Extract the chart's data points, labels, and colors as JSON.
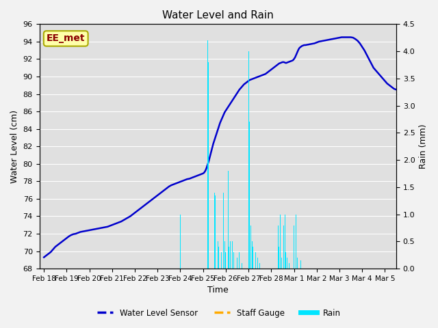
{
  "title": "Water Level and Rain",
  "xlabel": "Time",
  "ylabel_left": "Water Level (cm)",
  "ylabel_right": "Rain (mm)",
  "ylim_left": [
    68,
    96
  ],
  "ylim_right": [
    0.0,
    4.5
  ],
  "yticks_left": [
    68,
    70,
    72,
    74,
    76,
    78,
    80,
    82,
    84,
    86,
    88,
    90,
    92,
    94,
    96
  ],
  "yticks_right": [
    0.0,
    0.5,
    1.0,
    1.5,
    2.0,
    2.5,
    3.0,
    3.5,
    4.0,
    4.5
  ],
  "plot_bg_color": "#e0e0e0",
  "fig_bg_color": "#f2f2f2",
  "annotation_text": "EE_met",
  "annotation_color": "#8B0000",
  "annotation_bg": "#ffffaa",
  "annotation_edge": "#aaaa00",
  "water_level_color": "#0000cc",
  "staff_gauge_color": "#ffaa00",
  "rain_color": "#00e5ff",
  "legend_labels": [
    "Water Level Sensor",
    "Staff Gauge",
    "Rain"
  ],
  "water_level_data": [
    [
      0.0,
      69.3
    ],
    [
      0.1,
      69.5
    ],
    [
      0.2,
      69.7
    ],
    [
      0.3,
      69.9
    ],
    [
      0.4,
      70.2
    ],
    [
      0.5,
      70.5
    ],
    [
      0.6,
      70.7
    ],
    [
      0.7,
      70.9
    ],
    [
      0.8,
      71.1
    ],
    [
      0.9,
      71.3
    ],
    [
      1.0,
      71.5
    ],
    [
      1.1,
      71.7
    ],
    [
      1.2,
      71.85
    ],
    [
      1.3,
      71.95
    ],
    [
      1.4,
      72.0
    ],
    [
      1.5,
      72.1
    ],
    [
      1.6,
      72.2
    ],
    [
      1.7,
      72.25
    ],
    [
      1.8,
      72.3
    ],
    [
      1.9,
      72.35
    ],
    [
      2.0,
      72.4
    ],
    [
      2.1,
      72.45
    ],
    [
      2.2,
      72.5
    ],
    [
      2.3,
      72.55
    ],
    [
      2.4,
      72.6
    ],
    [
      2.5,
      72.65
    ],
    [
      2.6,
      72.7
    ],
    [
      2.7,
      72.75
    ],
    [
      2.8,
      72.8
    ],
    [
      2.9,
      72.9
    ],
    [
      3.0,
      73.0
    ],
    [
      3.1,
      73.1
    ],
    [
      3.2,
      73.2
    ],
    [
      3.3,
      73.3
    ],
    [
      3.4,
      73.4
    ],
    [
      3.5,
      73.55
    ],
    [
      3.6,
      73.7
    ],
    [
      3.7,
      73.85
    ],
    [
      3.8,
      74.0
    ],
    [
      3.9,
      74.2
    ],
    [
      4.0,
      74.4
    ],
    [
      4.1,
      74.6
    ],
    [
      4.2,
      74.8
    ],
    [
      4.3,
      75.0
    ],
    [
      4.4,
      75.2
    ],
    [
      4.5,
      75.4
    ],
    [
      4.6,
      75.6
    ],
    [
      4.7,
      75.8
    ],
    [
      4.8,
      76.0
    ],
    [
      4.9,
      76.2
    ],
    [
      5.0,
      76.4
    ],
    [
      5.1,
      76.6
    ],
    [
      5.2,
      76.8
    ],
    [
      5.3,
      77.0
    ],
    [
      5.4,
      77.2
    ],
    [
      5.5,
      77.4
    ],
    [
      5.6,
      77.55
    ],
    [
      5.7,
      77.65
    ],
    [
      5.8,
      77.75
    ],
    [
      5.9,
      77.85
    ],
    [
      6.0,
      77.95
    ],
    [
      6.1,
      78.05
    ],
    [
      6.2,
      78.15
    ],
    [
      6.3,
      78.25
    ],
    [
      6.4,
      78.3
    ],
    [
      6.5,
      78.4
    ],
    [
      6.6,
      78.5
    ],
    [
      6.7,
      78.6
    ],
    [
      6.8,
      78.7
    ],
    [
      6.9,
      78.8
    ],
    [
      7.0,
      78.9
    ],
    [
      7.05,
      79.0
    ],
    [
      7.1,
      79.2
    ],
    [
      7.15,
      79.5
    ],
    [
      7.2,
      79.9
    ],
    [
      7.25,
      80.3
    ],
    [
      7.3,
      80.8
    ],
    [
      7.35,
      81.3
    ],
    [
      7.4,
      81.8
    ],
    [
      7.45,
      82.3
    ],
    [
      7.5,
      82.7
    ],
    [
      7.55,
      83.1
    ],
    [
      7.6,
      83.5
    ],
    [
      7.65,
      83.9
    ],
    [
      7.7,
      84.3
    ],
    [
      7.75,
      84.7
    ],
    [
      7.8,
      85.0
    ],
    [
      7.85,
      85.3
    ],
    [
      7.9,
      85.6
    ],
    [
      7.95,
      85.9
    ],
    [
      8.0,
      86.1
    ],
    [
      8.05,
      86.3
    ],
    [
      8.1,
      86.5
    ],
    [
      8.15,
      86.7
    ],
    [
      8.2,
      86.9
    ],
    [
      8.25,
      87.1
    ],
    [
      8.3,
      87.3
    ],
    [
      8.35,
      87.5
    ],
    [
      8.4,
      87.7
    ],
    [
      8.45,
      87.9
    ],
    [
      8.5,
      88.1
    ],
    [
      8.55,
      88.3
    ],
    [
      8.6,
      88.5
    ],
    [
      8.65,
      88.65
    ],
    [
      8.7,
      88.8
    ],
    [
      8.75,
      88.95
    ],
    [
      8.8,
      89.1
    ],
    [
      8.85,
      89.2
    ],
    [
      8.9,
      89.3
    ],
    [
      8.95,
      89.4
    ],
    [
      9.0,
      89.5
    ],
    [
      9.05,
      89.6
    ],
    [
      9.1,
      89.65
    ],
    [
      9.15,
      89.7
    ],
    [
      9.2,
      89.75
    ],
    [
      9.25,
      89.8
    ],
    [
      9.3,
      89.85
    ],
    [
      9.35,
      89.9
    ],
    [
      9.4,
      89.95
    ],
    [
      9.45,
      90.0
    ],
    [
      9.5,
      90.05
    ],
    [
      9.55,
      90.1
    ],
    [
      9.6,
      90.15
    ],
    [
      9.65,
      90.2
    ],
    [
      9.7,
      90.25
    ],
    [
      9.75,
      90.3
    ],
    [
      9.8,
      90.4
    ],
    [
      9.85,
      90.5
    ],
    [
      9.9,
      90.6
    ],
    [
      9.95,
      90.7
    ],
    [
      10.0,
      90.8
    ],
    [
      10.05,
      90.9
    ],
    [
      10.1,
      91.0
    ],
    [
      10.15,
      91.1
    ],
    [
      10.2,
      91.2
    ],
    [
      10.25,
      91.3
    ],
    [
      10.3,
      91.4
    ],
    [
      10.35,
      91.5
    ],
    [
      10.4,
      91.55
    ],
    [
      10.45,
      91.6
    ],
    [
      10.5,
      91.65
    ],
    [
      10.55,
      91.65
    ],
    [
      10.6,
      91.6
    ],
    [
      10.65,
      91.55
    ],
    [
      10.7,
      91.6
    ],
    [
      10.75,
      91.65
    ],
    [
      10.8,
      91.7
    ],
    [
      10.85,
      91.75
    ],
    [
      10.9,
      91.8
    ],
    [
      10.95,
      91.85
    ],
    [
      11.0,
      92.0
    ],
    [
      11.05,
      92.2
    ],
    [
      11.1,
      92.5
    ],
    [
      11.15,
      92.8
    ],
    [
      11.2,
      93.1
    ],
    [
      11.25,
      93.3
    ],
    [
      11.3,
      93.4
    ],
    [
      11.35,
      93.5
    ],
    [
      11.4,
      93.55
    ],
    [
      11.45,
      93.6
    ],
    [
      11.5,
      93.6
    ],
    [
      11.6,
      93.65
    ],
    [
      11.7,
      93.7
    ],
    [
      11.8,
      93.75
    ],
    [
      11.9,
      93.8
    ],
    [
      12.0,
      93.9
    ],
    [
      12.1,
      94.0
    ],
    [
      12.2,
      94.05
    ],
    [
      12.3,
      94.1
    ],
    [
      12.4,
      94.15
    ],
    [
      12.5,
      94.2
    ],
    [
      12.6,
      94.25
    ],
    [
      12.7,
      94.3
    ],
    [
      12.8,
      94.35
    ],
    [
      12.9,
      94.4
    ],
    [
      13.0,
      94.45
    ],
    [
      13.1,
      94.5
    ],
    [
      13.2,
      94.5
    ],
    [
      13.3,
      94.5
    ],
    [
      13.4,
      94.5
    ],
    [
      13.5,
      94.5
    ],
    [
      13.6,
      94.45
    ],
    [
      13.7,
      94.3
    ],
    [
      13.8,
      94.1
    ],
    [
      13.9,
      93.8
    ],
    [
      14.0,
      93.4
    ],
    [
      14.1,
      93.0
    ],
    [
      14.2,
      92.5
    ],
    [
      14.3,
      92.0
    ],
    [
      14.4,
      91.5
    ],
    [
      14.5,
      91.0
    ],
    [
      14.6,
      90.7
    ],
    [
      14.7,
      90.4
    ],
    [
      14.8,
      90.1
    ],
    [
      14.9,
      89.8
    ],
    [
      15.0,
      89.5
    ],
    [
      15.1,
      89.2
    ],
    [
      15.2,
      89.0
    ],
    [
      15.3,
      88.8
    ],
    [
      15.4,
      88.6
    ],
    [
      15.5,
      88.5
    ]
  ],
  "rain_bars": [
    [
      6.0,
      1.0
    ],
    [
      7.2,
      4.2
    ],
    [
      7.25,
      3.8
    ],
    [
      7.5,
      1.4
    ],
    [
      7.55,
      1.35
    ],
    [
      7.65,
      0.5
    ],
    [
      7.7,
      0.4
    ],
    [
      7.8,
      0.3
    ],
    [
      7.9,
      1.4
    ],
    [
      7.95,
      0.5
    ],
    [
      8.0,
      0.3
    ],
    [
      8.1,
      1.8
    ],
    [
      8.15,
      0.4
    ],
    [
      8.2,
      0.5
    ],
    [
      8.3,
      0.5
    ],
    [
      8.35,
      0.3
    ],
    [
      8.5,
      0.2
    ],
    [
      8.6,
      0.3
    ],
    [
      8.7,
      0.1
    ],
    [
      9.0,
      4.0
    ],
    [
      9.05,
      2.7
    ],
    [
      9.1,
      0.8
    ],
    [
      9.15,
      0.5
    ],
    [
      9.2,
      0.4
    ],
    [
      9.3,
      0.3
    ],
    [
      9.4,
      0.2
    ],
    [
      9.5,
      0.1
    ],
    [
      10.3,
      0.8
    ],
    [
      10.35,
      0.4
    ],
    [
      10.4,
      1.0
    ],
    [
      10.45,
      0.2
    ],
    [
      10.55,
      0.8
    ],
    [
      10.6,
      1.0
    ],
    [
      10.65,
      0.3
    ],
    [
      10.7,
      0.2
    ],
    [
      10.8,
      0.1
    ],
    [
      11.0,
      0.8
    ],
    [
      11.1,
      1.0
    ],
    [
      11.15,
      0.2
    ],
    [
      11.3,
      0.15
    ]
  ],
  "x_tick_labels": [
    "Feb 18",
    "Feb 19",
    "Feb 20",
    "Feb 21",
    "Feb 22",
    "Feb 23",
    "Feb 24",
    "Feb 25",
    "Feb 26",
    "Feb 27",
    "Feb 28",
    "Mar 1",
    "Mar 2",
    "Mar 3",
    "Mar 4",
    "Mar 5"
  ],
  "x_tick_positions": [
    0,
    1,
    2,
    3,
    4,
    5,
    6,
    7,
    8,
    9,
    10,
    11,
    12,
    13,
    14,
    15
  ],
  "xlim": [
    -0.2,
    15.5
  ]
}
